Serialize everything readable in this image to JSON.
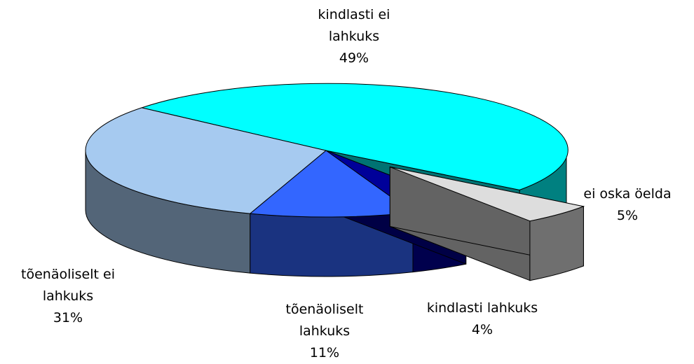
{
  "chart_data": {
    "type": "pie",
    "categories": [
      "kindlasti ei lahkuks",
      "ei oska öelda",
      "kindlasti lahkuks",
      "tõenäoliselt lahkuks",
      "tõenäoliselt ei lahkuks"
    ],
    "values": [
      49,
      5,
      4,
      11,
      31
    ],
    "value_labels": [
      "49%",
      "5%",
      "4%",
      "11%",
      "31%"
    ],
    "colors": [
      "#00ffff",
      "#dddddd",
      "#000099",
      "#3366ff",
      "#a6caf0"
    ]
  }
}
